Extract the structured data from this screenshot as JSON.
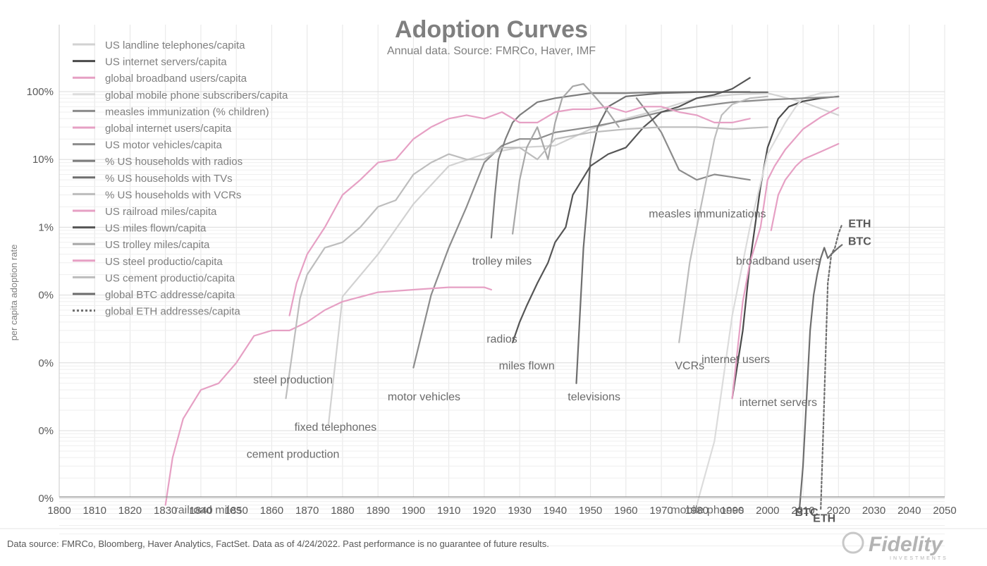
{
  "chart_data": {
    "type": "line",
    "title": "Adoption Curves",
    "subtitle": "Annual data.  Source: FMRCo, Haver, IMF",
    "ylabel": "per capita adoption rate",
    "xlabel": "",
    "y_scale": "log",
    "xlim": [
      1800,
      2050
    ],
    "ylim": [
      1e-07,
      10
    ],
    "x_ticks": [
      "1800",
      "1810",
      "1820",
      "1830",
      "1840",
      "1850",
      "1860",
      "1870",
      "1880",
      "1890",
      "1900",
      "1910",
      "1920",
      "1930",
      "1940",
      "1950",
      "1960",
      "1970",
      "1980",
      "1990",
      "2000",
      "2010",
      "2020",
      "2030",
      "2040",
      "2050"
    ],
    "y_tick_labels": [
      "0%",
      "0%",
      "0%",
      "0%",
      "0%",
      "1%",
      "10%",
      "100%"
    ],
    "y_tick_values": [
      1e-07,
      1e-06,
      1e-05,
      0.0001,
      0.001,
      0.01,
      0.1,
      1
    ],
    "grid": true,
    "legend_position": "top-left",
    "series": [
      {
        "name": "US landline telephones/capita",
        "color": "#d2d2d2",
        "dash": false,
        "points": [
          [
            1876,
            1.2e-05
          ],
          [
            1880,
            0.00095
          ],
          [
            1890,
            0.004
          ],
          [
            1900,
            0.022
          ],
          [
            1910,
            0.08
          ],
          [
            1920,
            0.12
          ],
          [
            1930,
            0.15
          ],
          [
            1940,
            0.16
          ],
          [
            1950,
            0.28
          ],
          [
            1960,
            0.4
          ],
          [
            1970,
            0.55
          ],
          [
            1980,
            0.8
          ],
          [
            1990,
            0.9
          ],
          [
            2000,
            0.95
          ],
          [
            2010,
            0.7
          ],
          [
            2020,
            0.45
          ]
        ]
      },
      {
        "name": "US internet servers/capita",
        "color": "#4a4a4a",
        "dash": false,
        "points": [
          [
            1990,
            3e-05
          ],
          [
            1993,
            0.0003
          ],
          [
            1995,
            0.003
          ],
          [
            1998,
            0.04
          ],
          [
            2000,
            0.15
          ],
          [
            2003,
            0.4
          ],
          [
            2006,
            0.6
          ],
          [
            2010,
            0.72
          ],
          [
            2015,
            0.8
          ],
          [
            2020,
            0.85
          ]
        ]
      },
      {
        "name": "global broadband users/capita",
        "color": "#e6a0c4",
        "dash": false,
        "points": [
          [
            2001,
            0.009
          ],
          [
            2003,
            0.03
          ],
          [
            2005,
            0.05
          ],
          [
            2008,
            0.08
          ],
          [
            2010,
            0.1
          ],
          [
            2015,
            0.13
          ],
          [
            2020,
            0.17
          ]
        ]
      },
      {
        "name": "global mobile phone subscribers/capita",
        "color": "#dcdcdc",
        "dash": false,
        "points": [
          [
            1980,
            8e-07
          ],
          [
            1985,
            7e-06
          ],
          [
            1990,
            0.0005
          ],
          [
            1995,
            0.01
          ],
          [
            2000,
            0.12
          ],
          [
            2005,
            0.35
          ],
          [
            2008,
            0.6
          ],
          [
            2010,
            0.8
          ],
          [
            2015,
            0.95
          ],
          [
            2020,
            1.0
          ]
        ]
      },
      {
        "name": "measles immunization (% children)",
        "color": "#8c8c8c",
        "dash": false,
        "points": [
          [
            1963,
            0.8
          ],
          [
            1966,
            0.5
          ],
          [
            1970,
            0.25
          ],
          [
            1975,
            0.07
          ],
          [
            1980,
            0.05
          ],
          [
            1985,
            0.06
          ],
          [
            1990,
            0.055
          ],
          [
            1995,
            0.05
          ]
        ]
      },
      {
        "name": "global internet users/capita",
        "color": "#e6a0c4",
        "dash": false,
        "points": [
          [
            1990,
            3e-05
          ],
          [
            1993,
            0.0008
          ],
          [
            1995,
            0.003
          ],
          [
            1998,
            0.01
          ],
          [
            2000,
            0.05
          ],
          [
            2002,
            0.08
          ],
          [
            2005,
            0.14
          ],
          [
            2010,
            0.28
          ],
          [
            2015,
            0.42
          ],
          [
            2020,
            0.58
          ]
        ]
      },
      {
        "name": "US motor vehicles/capita",
        "color": "#8c8c8c",
        "dash": false,
        "points": [
          [
            1900,
            8.5e-05
          ],
          [
            1905,
            0.001
          ],
          [
            1910,
            0.005
          ],
          [
            1915,
            0.02
          ],
          [
            1920,
            0.09
          ],
          [
            1925,
            0.16
          ],
          [
            1930,
            0.2
          ],
          [
            1935,
            0.2
          ],
          [
            1940,
            0.25
          ],
          [
            1950,
            0.3
          ],
          [
            1960,
            0.38
          ],
          [
            1970,
            0.5
          ],
          [
            1980,
            0.6
          ],
          [
            1990,
            0.7
          ],
          [
            2000,
            0.76
          ],
          [
            2010,
            0.8
          ],
          [
            2020,
            0.84
          ]
        ]
      },
      {
        "name": "% US households with radios",
        "color": "#7d7d7d",
        "dash": false,
        "points": [
          [
            1922,
            0.007
          ],
          [
            1923,
            0.03
          ],
          [
            1924,
            0.1
          ],
          [
            1926,
            0.2
          ],
          [
            1928,
            0.35
          ],
          [
            1930,
            0.45
          ],
          [
            1935,
            0.7
          ],
          [
            1940,
            0.8
          ],
          [
            1950,
            0.95
          ],
          [
            1960,
            0.95
          ],
          [
            1970,
            0.98
          ],
          [
            1980,
            0.99
          ],
          [
            1990,
            0.99
          ],
          [
            1995,
            0.99
          ]
        ]
      },
      {
        "name": "% US households with TVs",
        "color": "#6e6e6e",
        "dash": false,
        "points": [
          [
            1946,
            5e-05
          ],
          [
            1947,
            0.0005
          ],
          [
            1948,
            0.005
          ],
          [
            1949,
            0.02
          ],
          [
            1950,
            0.1
          ],
          [
            1952,
            0.3
          ],
          [
            1955,
            0.6
          ],
          [
            1960,
            0.85
          ],
          [
            1970,
            0.95
          ],
          [
            1980,
            0.98
          ],
          [
            1990,
            0.98
          ],
          [
            2000,
            0.98
          ]
        ]
      },
      {
        "name": "% US households with VCRs",
        "color": "#bdbdbd",
        "dash": false,
        "points": [
          [
            1975,
            0.0002
          ],
          [
            1978,
            0.003
          ],
          [
            1980,
            0.01
          ],
          [
            1983,
            0.06
          ],
          [
            1985,
            0.2
          ],
          [
            1987,
            0.45
          ],
          [
            1990,
            0.65
          ],
          [
            1995,
            0.8
          ],
          [
            2000,
            0.85
          ]
        ]
      },
      {
        "name": "US railroad miles/capita",
        "color": "#e6a0c4",
        "dash": false,
        "points": [
          [
            1830,
            8e-07
          ],
          [
            1832,
            4e-06
          ],
          [
            1835,
            1.5e-05
          ],
          [
            1840,
            4e-05
          ],
          [
            1845,
            5e-05
          ],
          [
            1850,
            0.0001
          ],
          [
            1855,
            0.00025
          ],
          [
            1860,
            0.0003
          ],
          [
            1865,
            0.0003
          ],
          [
            1870,
            0.0004
          ],
          [
            1875,
            0.0006
          ],
          [
            1880,
            0.0008
          ],
          [
            1890,
            0.0011
          ],
          [
            1900,
            0.0012
          ],
          [
            1910,
            0.0013
          ],
          [
            1920,
            0.0013
          ],
          [
            1922,
            0.0012
          ]
        ]
      },
      {
        "name": "US miles flown/capita",
        "color": "#555555",
        "dash": false,
        "points": [
          [
            1928,
            0.0002
          ],
          [
            1930,
            0.0004
          ],
          [
            1932,
            0.0007
          ],
          [
            1935,
            0.0015
          ],
          [
            1938,
            0.003
          ],
          [
            1940,
            0.006
          ],
          [
            1943,
            0.01
          ],
          [
            1945,
            0.03
          ],
          [
            1950,
            0.08
          ],
          [
            1955,
            0.12
          ],
          [
            1960,
            0.15
          ],
          [
            1965,
            0.3
          ],
          [
            1970,
            0.5
          ],
          [
            1975,
            0.6
          ],
          [
            1980,
            0.8
          ],
          [
            1985,
            0.9
          ],
          [
            1990,
            1.1
          ],
          [
            1995,
            1.6
          ]
        ]
      },
      {
        "name": "US trolley miles/capita",
        "color": "#a8a8a8",
        "dash": false,
        "points": [
          [
            1928,
            0.008
          ],
          [
            1930,
            0.05
          ],
          [
            1932,
            0.15
          ],
          [
            1935,
            0.3
          ],
          [
            1938,
            0.1
          ],
          [
            1940,
            0.35
          ],
          [
            1942,
            0.8
          ],
          [
            1945,
            1.2
          ],
          [
            1948,
            1.3
          ],
          [
            1950,
            1.0
          ],
          [
            1955,
            0.5
          ],
          [
            1958,
            0.3
          ]
        ]
      },
      {
        "name": "US steel productio/capita",
        "color": "#e6a0c4",
        "dash": false,
        "points": [
          [
            1865,
            0.0005
          ],
          [
            1867,
            0.0015
          ],
          [
            1870,
            0.004
          ],
          [
            1875,
            0.01
          ],
          [
            1880,
            0.03
          ],
          [
            1885,
            0.05
          ],
          [
            1890,
            0.09
          ],
          [
            1895,
            0.1
          ],
          [
            1900,
            0.2
          ],
          [
            1905,
            0.3
          ],
          [
            1910,
            0.4
          ],
          [
            1915,
            0.45
          ],
          [
            1920,
            0.4
          ],
          [
            1925,
            0.5
          ],
          [
            1930,
            0.35
          ],
          [
            1935,
            0.35
          ],
          [
            1940,
            0.5
          ],
          [
            1945,
            0.55
          ],
          [
            1950,
            0.55
          ],
          [
            1955,
            0.6
          ],
          [
            1960,
            0.5
          ],
          [
            1965,
            0.6
          ],
          [
            1970,
            0.6
          ],
          [
            1975,
            0.5
          ],
          [
            1980,
            0.45
          ],
          [
            1985,
            0.35
          ],
          [
            1990,
            0.35
          ],
          [
            1995,
            0.4
          ]
        ]
      },
      {
        "name": "US cement productio/capita",
        "color": "#bdbdbd",
        "dash": false,
        "points": [
          [
            1864,
            3e-05
          ],
          [
            1868,
            0.0009
          ],
          [
            1870,
            0.002
          ],
          [
            1875,
            0.005
          ],
          [
            1880,
            0.006
          ],
          [
            1885,
            0.01
          ],
          [
            1890,
            0.02
          ],
          [
            1895,
            0.025
          ],
          [
            1900,
            0.06
          ],
          [
            1905,
            0.09
          ],
          [
            1910,
            0.12
          ],
          [
            1915,
            0.1
          ],
          [
            1920,
            0.1
          ],
          [
            1925,
            0.15
          ],
          [
            1930,
            0.15
          ],
          [
            1935,
            0.1
          ],
          [
            1940,
            0.2
          ],
          [
            1950,
            0.25
          ],
          [
            1960,
            0.28
          ],
          [
            1970,
            0.3
          ],
          [
            1980,
            0.3
          ],
          [
            1990,
            0.28
          ],
          [
            2000,
            0.3
          ]
        ]
      },
      {
        "name": "global BTC addresse/capita",
        "color": "#6e6e6e",
        "dash": false,
        "points": [
          [
            2009,
            7e-07
          ],
          [
            2010,
            3e-06
          ],
          [
            2011,
            3e-05
          ],
          [
            2012,
            0.0003
          ],
          [
            2013,
            0.001
          ],
          [
            2014,
            0.002
          ],
          [
            2015,
            0.0035
          ],
          [
            2016,
            0.005
          ],
          [
            2017,
            0.0035
          ],
          [
            2018,
            0.004
          ],
          [
            2019,
            0.0045
          ],
          [
            2020,
            0.005
          ],
          [
            2021,
            0.0055
          ]
        ]
      },
      {
        "name": "global ETH addresses/capita",
        "color": "#6e6e6e",
        "dash": true,
        "points": [
          [
            2015,
            7e-07
          ],
          [
            2016,
            3e-05
          ],
          [
            2017,
            0.0015
          ],
          [
            2018,
            0.004
          ],
          [
            2019,
            0.005
          ],
          [
            2020,
            0.008
          ],
          [
            2021,
            0.011
          ]
        ]
      }
    ],
    "annotations": [
      {
        "text": "railroad miles",
        "x": 1842,
        "y": 6e-07
      },
      {
        "text": "steel production",
        "x": 1866,
        "y": 5e-05
      },
      {
        "text": "cement production",
        "x": 1866,
        "y": 4e-06
      },
      {
        "text": "fixed telephones",
        "x": 1878,
        "y": 1e-05
      },
      {
        "text": "motor vehicles",
        "x": 1903,
        "y": 2.8e-05
      },
      {
        "text": "trolley miles",
        "x": 1925,
        "y": 0.0028
      },
      {
        "text": "radios",
        "x": 1925,
        "y": 0.0002
      },
      {
        "text": "miles flown",
        "x": 1932,
        "y": 8e-05
      },
      {
        "text": "televisions",
        "x": 1951,
        "y": 2.8e-05
      },
      {
        "text": "measles immunizations",
        "x": 1983,
        "y": 0.014
      },
      {
        "text": "VCRs",
        "x": 1978,
        "y": 8e-05
      },
      {
        "text": "mobile phones",
        "x": 1983,
        "y": 6e-07
      },
      {
        "text": "internet users",
        "x": 1991,
        "y": 0.0001
      },
      {
        "text": "internet servers",
        "x": 2003,
        "y": 2.3e-05
      },
      {
        "text": "broadband users",
        "x": 2003,
        "y": 0.0028
      },
      {
        "text": "BTC",
        "x": 2011,
        "y": 5.5e-07,
        "bold": true
      },
      {
        "text": "ETH",
        "x": 2016,
        "y": 4.5e-07,
        "bold": true
      },
      {
        "text": "ETH",
        "x": 2026,
        "y": 0.01,
        "bold": true
      },
      {
        "text": "BTC",
        "x": 2026,
        "y": 0.0055,
        "bold": true
      }
    ]
  },
  "footer": {
    "source_note": "Data source: FMRCo, Bloomberg, Haver Analytics, FactSet. Data as of 4/24/2022. Past performance is no guarantee of future results.",
    "logo": "Fidelity",
    "logo_sub": "INVESTMENTS"
  }
}
